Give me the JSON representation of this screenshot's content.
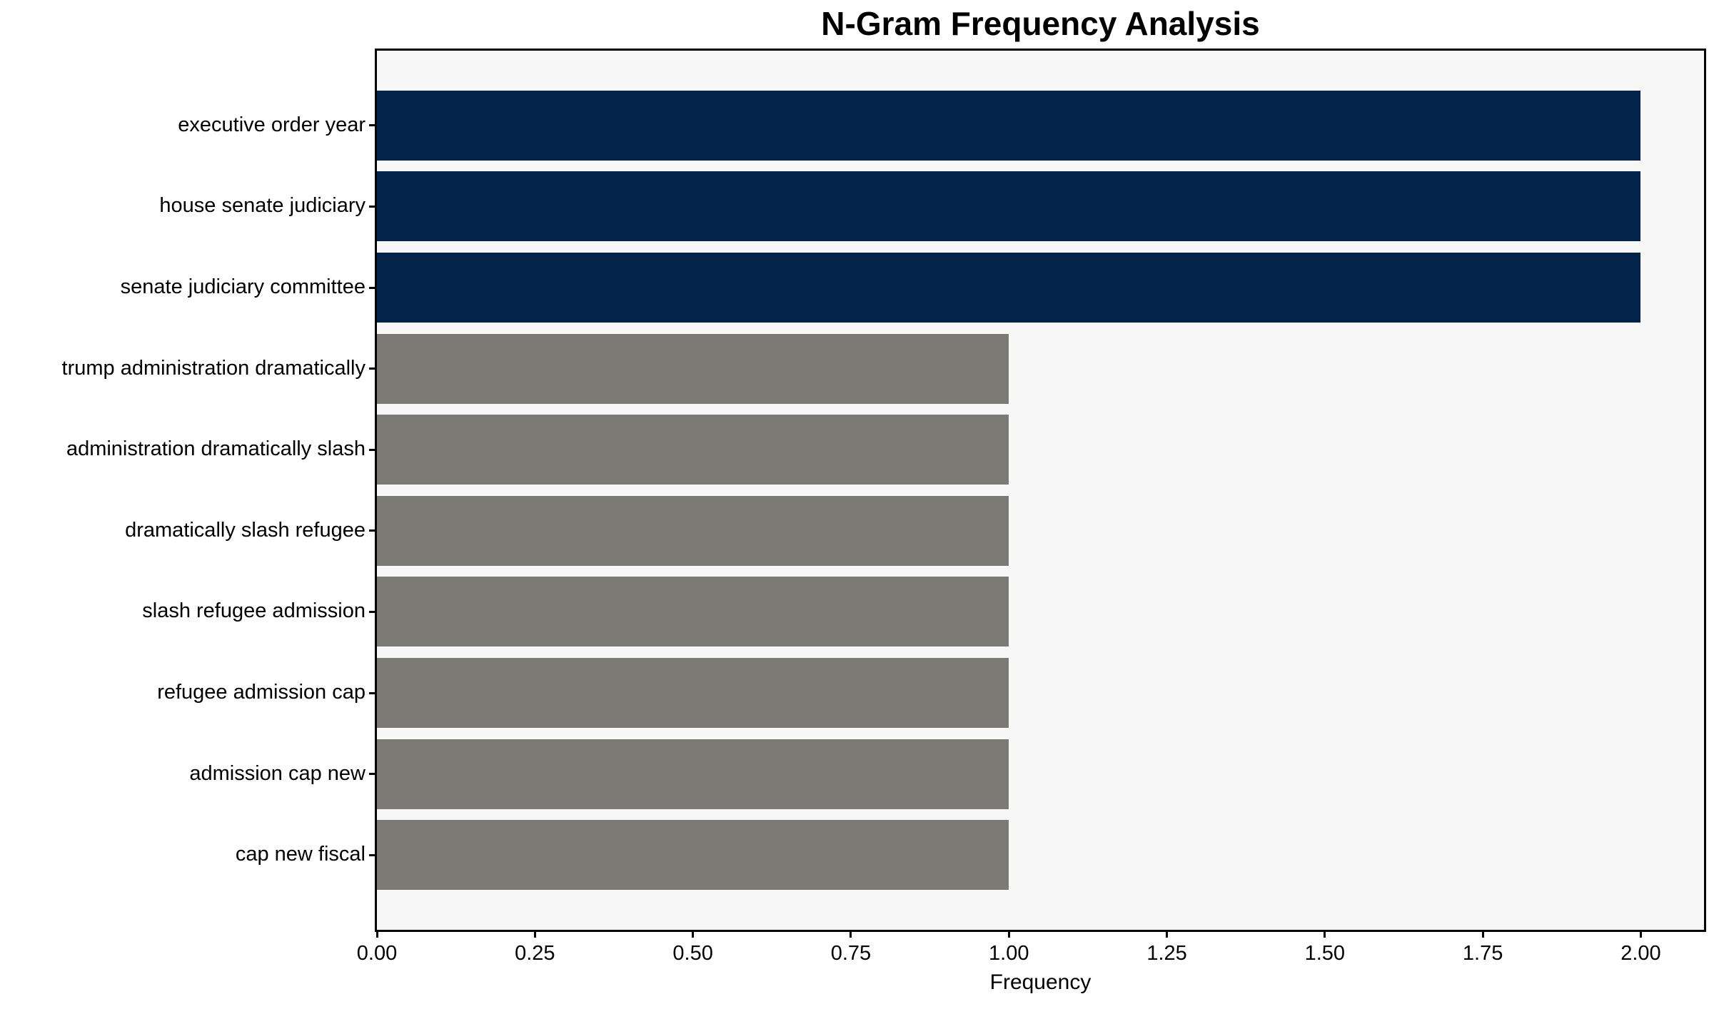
{
  "chart_data": {
    "type": "bar",
    "orientation": "horizontal",
    "title": "N-Gram Frequency Analysis",
    "xlabel": "Frequency",
    "ylabel": "",
    "categories": [
      "executive order year",
      "house senate judiciary",
      "senate judiciary committee",
      "trump administration dramatically",
      "administration dramatically slash",
      "dramatically slash refugee",
      "slash refugee admission",
      "refugee admission cap",
      "admission cap new",
      "cap new fiscal"
    ],
    "values": [
      2,
      2,
      2,
      1,
      1,
      1,
      1,
      1,
      1,
      1
    ],
    "bar_colors": [
      "#032349",
      "#032349",
      "#032349",
      "#7b7a75",
      "#7b7a75",
      "#7b7a75",
      "#7b7a75",
      "#7b7a75",
      "#7b7a75",
      "#7b7a75"
    ],
    "xlim": [
      0,
      2.1
    ],
    "xticks": [
      0,
      0.25,
      0.5,
      0.75,
      1.0,
      1.25,
      1.5,
      1.75,
      2.0
    ],
    "xtick_labels": [
      "0.00",
      "0.25",
      "0.50",
      "0.75",
      "1.00",
      "1.25",
      "1.50",
      "1.75",
      "2.00"
    ],
    "grid": false,
    "legend": null,
    "colors": {
      "bar_high": "#032349",
      "bar_low": "#7b7a75",
      "plot_background": "#f7f7f8",
      "figure_background": "#ffffff",
      "spine": "#000000",
      "text": "#000000"
    }
  }
}
